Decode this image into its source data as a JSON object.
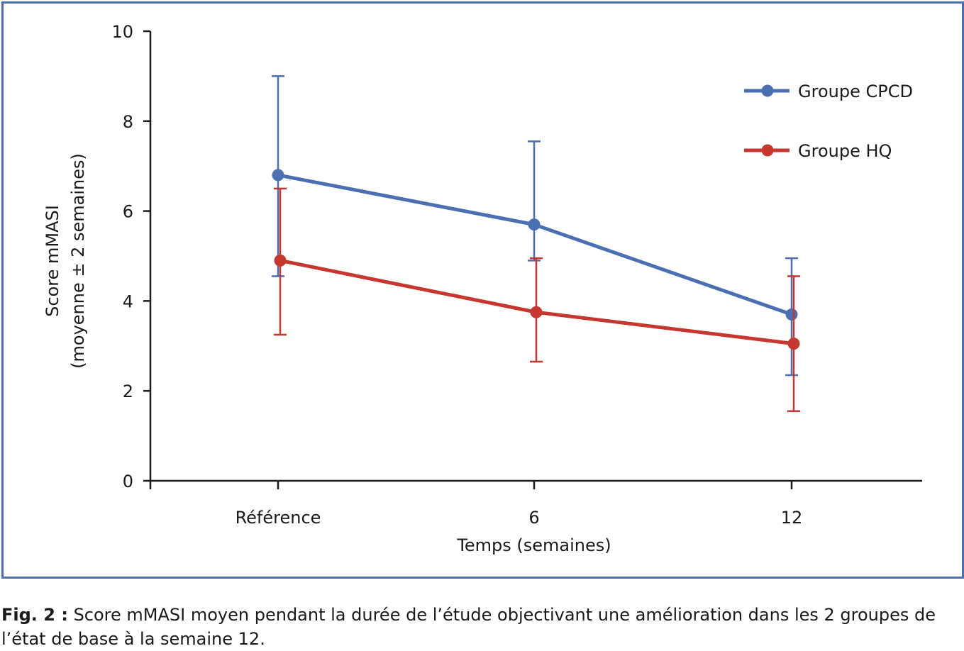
{
  "chart_data": {
    "type": "line",
    "categories": [
      "Référence",
      "6",
      "12"
    ],
    "xlabel": "Temps (semaines)",
    "ylabel_lines": [
      "Score mMASI",
      "(moyenne ± 2 semaines)"
    ],
    "ylim": [
      0,
      10
    ],
    "yticks": [
      0,
      2,
      4,
      6,
      8,
      10
    ],
    "grid": false,
    "legend_position": "top-right",
    "series": [
      {
        "name": "Groupe CPCD",
        "color": "#4a6fb3",
        "values": [
          6.8,
          5.7,
          3.7
        ],
        "err_low": [
          4.55,
          4.9,
          2.35
        ],
        "err_high": [
          9.0,
          7.55,
          4.95
        ]
      },
      {
        "name": "Groupe HQ",
        "color": "#c8372f",
        "values": [
          4.9,
          3.75,
          3.05
        ],
        "err_low": [
          3.25,
          2.65,
          1.55
        ],
        "err_high": [
          6.5,
          4.95,
          4.55
        ]
      }
    ]
  },
  "caption": {
    "label": "Fig. 2 :",
    "text": " Score mMASI moyen pendant la durée de l’étude objectivant une amélioration dans les 2 groupes de l’état de base à la semaine 12."
  }
}
